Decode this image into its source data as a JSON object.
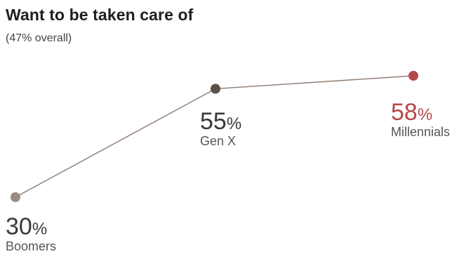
{
  "chart_data": {
    "type": "line",
    "title": "Want to be taken care of",
    "subtitle": "(47% overall)",
    "categories": [
      "Boomers",
      "Gen X",
      "Millennials"
    ],
    "values": [
      30,
      55,
      58
    ],
    "value_labels": [
      "30",
      "55",
      "58"
    ],
    "unit": "%",
    "colors": {
      "line": "#8c7b70",
      "Boomers": "#9a8c80",
      "Gen X": "#5a504a",
      "Millennials": "#b5494a"
    }
  }
}
